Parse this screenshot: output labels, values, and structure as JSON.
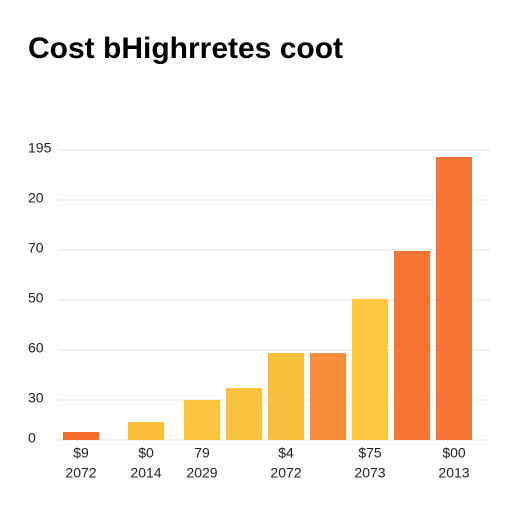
{
  "chart_data": {
    "type": "bar",
    "title": "Cost bHighrretes coot",
    "categories": [
      "$9",
      "$0",
      "79",
      null,
      "$4",
      null,
      "$75",
      null,
      "$00"
    ],
    "category_years": [
      "2072",
      "2014",
      "2029",
      null,
      "2072",
      null,
      "2073",
      null,
      "2013"
    ],
    "values": [
      0.8,
      1.8,
      4,
      5.2,
      8.7,
      8.7,
      14.1,
      18.9,
      28.3
    ],
    "colors": [
      "#f26b2a",
      "#fbbf3a",
      "#fcc43d",
      "#fbc240",
      "#fbc03a",
      "#f98d3a",
      "#fdc83f",
      "#f77432",
      "#f77634"
    ],
    "ylim": [
      0,
      30
    ],
    "yticks": [
      0,
      {
        "value": 4,
        "label": "30"
      },
      {
        "value": 9,
        "label": "60"
      },
      {
        "value": 14,
        "label": "50"
      },
      {
        "value": 19,
        "label": "70"
      },
      {
        "value": 24,
        "label": "20"
      },
      {
        "value": 29,
        "label": "195"
      }
    ],
    "grid": true
  }
}
